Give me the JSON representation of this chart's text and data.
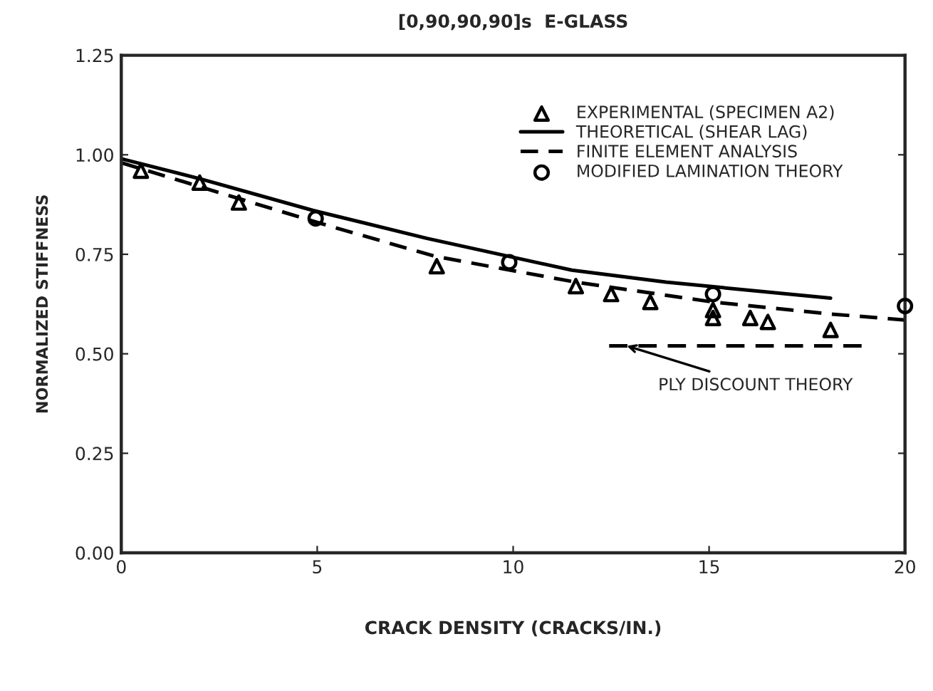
{
  "chart_data": {
    "type": "line",
    "title": "[0,90,90,90]s  E-GLASS",
    "xlabel": "CRACK DENSITY (CRACKS/IN.)",
    "ylabel": "NORMALIZED STIFFNESS",
    "xlim": [
      0,
      20
    ],
    "xticks": [
      0,
      5,
      10,
      15,
      20
    ],
    "ylim": [
      0,
      1.25
    ],
    "yticks": [
      {
        "value": 0,
        "label": "0.00"
      },
      0.25,
      {
        "value": 0.5,
        "label": "0.50"
      },
      0.75,
      {
        "value": 1,
        "label": "1.00"
      },
      1.25
    ],
    "legend": "top right",
    "grid": false,
    "series": [
      {
        "name": "EXPERIMENTAL (SPECIMEN A2)",
        "type": "scatter",
        "marker": "triangle",
        "color": "#000000",
        "x": [
          0.5,
          2.0,
          3.0,
          8.05,
          11.6,
          12.5,
          13.5,
          15.1,
          15.1,
          16.05,
          16.5,
          18.1
        ],
        "values": [
          0.96,
          0.93,
          0.88,
          0.72,
          0.67,
          0.65,
          0.63,
          0.61,
          0.59,
          0.59,
          0.58,
          0.56
        ]
      },
      {
        "name": "THEORETICAL (SHEAR LAG)",
        "line_style": "solid",
        "color": "#000000",
        "x": [
          0,
          2,
          4.9,
          7.8,
          11.5,
          13.9,
          18.1
        ],
        "values": [
          0.99,
          0.94,
          0.86,
          0.79,
          0.71,
          0.68,
          0.64
        ]
      },
      {
        "name": "FINITE ELEMENT ANALYSIS",
        "line_style": "dashed",
        "color": "#000000",
        "x": [
          0,
          2,
          5,
          8,
          11.6,
          15.1,
          18.1,
          20
        ],
        "values": [
          0.98,
          0.92,
          0.83,
          0.745,
          0.68,
          0.63,
          0.6,
          0.585
        ]
      },
      {
        "name": "MODIFIED LAMINATION THEORY",
        "type": "scatter",
        "marker": "circle",
        "color": "#000000",
        "x": [
          4.96,
          9.9,
          15.1,
          20
        ],
        "values": [
          0.84,
          0.73,
          0.65,
          0.62
        ]
      },
      {
        "line_style": "dashed",
        "color": "#000000",
        "x": [
          12.45,
          18.9
        ],
        "values": [
          0.52,
          0.52
        ]
      }
    ],
    "annotations": [
      {
        "text": "PLY DISCOUNT THEORY",
        "x": 12.9,
        "y": 0.52
      }
    ]
  }
}
